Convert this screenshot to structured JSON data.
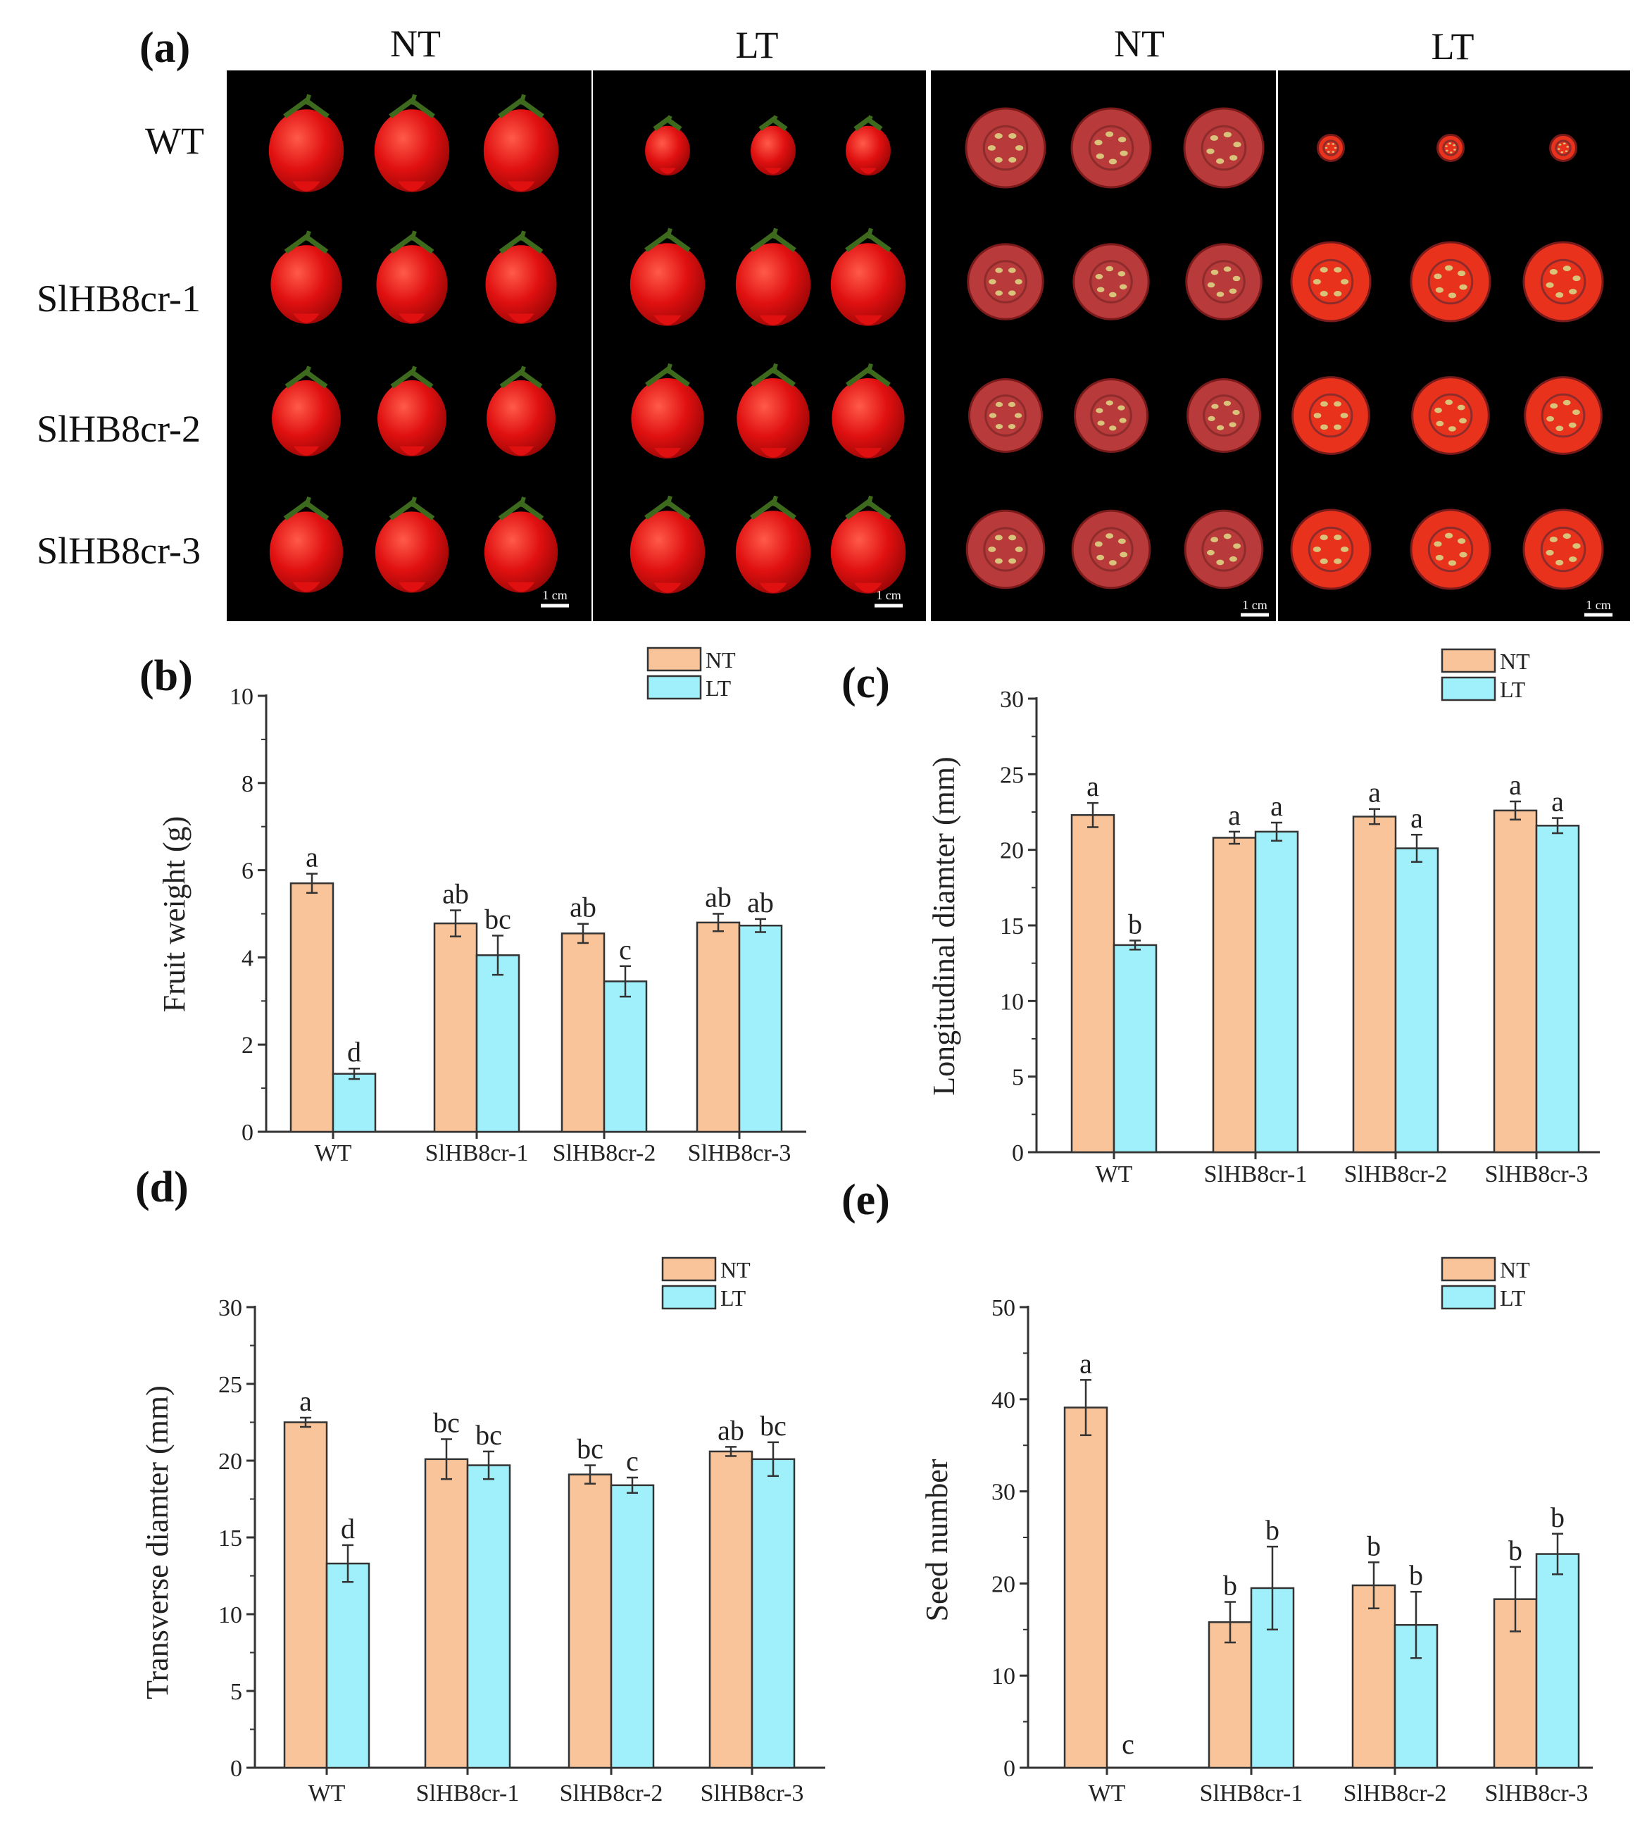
{
  "panel_a": {
    "label": "(a)",
    "column_headers": [
      "NT",
      "LT",
      "NT",
      "LT"
    ],
    "row_labels": [
      "WT",
      "SlHB8cr-1",
      "SlHB8cr-2",
      "SlHB8cr-3"
    ],
    "scale_bars": [
      "1 cm",
      "1 cm",
      "1 cm",
      "1 cm"
    ],
    "colors": {
      "background": "#000000",
      "fruit": "#e01010",
      "fruit_highlight": "#ff5a4a",
      "calyx": "#3d6a1c",
      "cut_flesh": "#b83a3a",
      "cut_flesh_lt": "#e8321c",
      "seed": "#d9c27a"
    },
    "relative_fruit_size": {
      "WT": [
        1.0,
        0.6
      ],
      "SlHB8cr-1": [
        0.95,
        1.0
      ],
      "SlHB8cr-2": [
        0.92,
        0.97
      ],
      "SlHB8cr-3": [
        0.98,
        1.0
      ]
    }
  },
  "colors": {
    "NT": "#f9c49a",
    "LT": "#9ff0fa",
    "outline": "#333333",
    "text": "#222222"
  },
  "chart_data": [
    {
      "id": "b",
      "panel_label": "(b)",
      "type": "bar",
      "categories": [
        "WT",
        "SlHB8cr-1",
        "SlHB8cr-2",
        "SlHB8cr-3"
      ],
      "series": [
        {
          "name": "NT",
          "values": [
            5.7,
            4.78,
            4.55,
            4.8
          ],
          "errors": [
            0.22,
            0.3,
            0.22,
            0.2
          ],
          "letters": [
            "a",
            "ab",
            "ab",
            "ab"
          ]
        },
        {
          "name": "LT",
          "values": [
            1.33,
            4.05,
            3.45,
            4.73
          ],
          "errors": [
            0.12,
            0.45,
            0.35,
            0.15
          ],
          "letters": [
            "d",
            "bc",
            "c",
            "ab"
          ]
        }
      ],
      "ylabel": "Fruit weight (g)",
      "ylim": [
        0,
        10
      ],
      "yticks": [
        "0",
        "2",
        "4",
        "6",
        "8",
        "10"
      ],
      "legend": "top-right"
    },
    {
      "id": "c",
      "panel_label": "(c)",
      "type": "bar",
      "categories": [
        "WT",
        "SlHB8cr-1",
        "SlHB8cr-2",
        "SlHB8cr-3"
      ],
      "series": [
        {
          "name": "NT",
          "values": [
            22.3,
            20.8,
            22.2,
            22.6
          ],
          "errors": [
            0.8,
            0.4,
            0.5,
            0.6
          ],
          "letters": [
            "a",
            "a",
            "a",
            "a"
          ]
        },
        {
          "name": "LT",
          "values": [
            13.7,
            21.2,
            20.1,
            21.6
          ],
          "errors": [
            0.3,
            0.6,
            0.9,
            0.5
          ],
          "letters": [
            "b",
            "a",
            "a",
            "a"
          ]
        }
      ],
      "ylabel": "Longitudinal diamter (mm)",
      "ylim": [
        0,
        30
      ],
      "yticks": [
        "0",
        "5",
        "10",
        "15",
        "20",
        "25",
        "30"
      ],
      "legend": "top-right"
    },
    {
      "id": "d",
      "panel_label": "(d)",
      "type": "bar",
      "categories": [
        "WT",
        "SlHB8cr-1",
        "SlHB8cr-2",
        "SlHB8cr-3"
      ],
      "series": [
        {
          "name": "NT",
          "values": [
            22.5,
            20.1,
            19.1,
            20.6
          ],
          "errors": [
            0.3,
            1.3,
            0.6,
            0.3
          ],
          "letters": [
            "a",
            "bc",
            "bc",
            "ab"
          ]
        },
        {
          "name": "LT",
          "values": [
            13.3,
            19.7,
            18.4,
            20.1
          ],
          "errors": [
            1.2,
            0.9,
            0.5,
            1.1
          ],
          "letters": [
            "d",
            "bc",
            "c",
            "bc"
          ]
        }
      ],
      "ylabel": "Transverse diamter (mm)",
      "ylim": [
        0,
        30
      ],
      "yticks": [
        "0",
        "5",
        "10",
        "15",
        "20",
        "25",
        "30"
      ],
      "legend": "top-right"
    },
    {
      "id": "e",
      "panel_label": "(e)",
      "type": "bar",
      "categories": [
        "WT",
        "SlHB8cr-1",
        "SlHB8cr-2",
        "SlHB8cr-3"
      ],
      "series": [
        {
          "name": "NT",
          "values": [
            39.1,
            15.8,
            19.8,
            18.3
          ],
          "errors": [
            3.0,
            2.2,
            2.5,
            3.5
          ],
          "letters": [
            "a",
            "b",
            "b",
            "b"
          ]
        },
        {
          "name": "LT",
          "values": [
            0,
            19.5,
            15.5,
            23.2
          ],
          "errors": [
            0,
            4.5,
            3.6,
            2.2
          ],
          "letters": [
            "c",
            "b",
            "b",
            "b"
          ]
        }
      ],
      "ylabel": "Seed number",
      "ylim": [
        0,
        50
      ],
      "yticks": [
        "0",
        "10",
        "20",
        "30",
        "40",
        "50"
      ],
      "legend": "top-right"
    }
  ]
}
